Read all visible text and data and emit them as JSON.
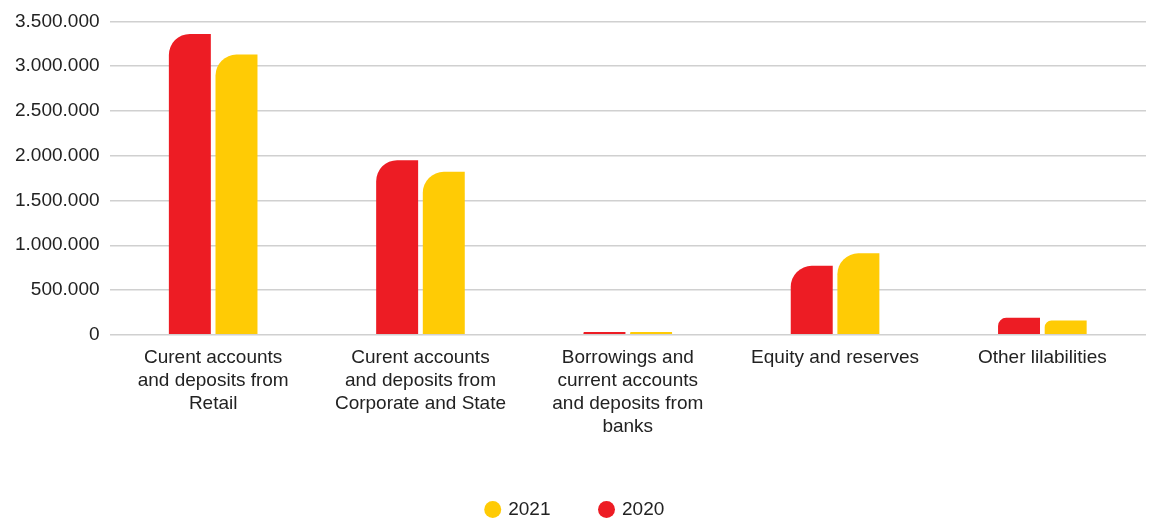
{
  "chart_data": {
    "type": "bar",
    "categories": [
      "Curent accounts and deposits from Retail",
      "Curent accounts and deposits from Corporate and State",
      "Borrowings and current accounts and deposits from banks",
      "Equity and reserves",
      "Other lilabilities"
    ],
    "series": [
      {
        "name": "2020",
        "color": "#ed1c24",
        "values": [
          3360000,
          1950000,
          30000,
          770000,
          190000
        ]
      },
      {
        "name": "2021",
        "color": "#ffcb05",
        "values": [
          3130000,
          1820000,
          30000,
          910000,
          160000
        ]
      }
    ],
    "ylim": [
      0,
      3500000
    ],
    "yticks": [
      {
        "value": 0,
        "label": "0"
      },
      {
        "value": 500000,
        "label": "500.000"
      },
      {
        "value": 1000000,
        "label": "1.000.000"
      },
      {
        "value": 1500000,
        "label": "1.500.000"
      },
      {
        "value": 2000000,
        "label": "2.000.000"
      },
      {
        "value": 2500000,
        "label": "2.500.000"
      },
      {
        "value": 3000000,
        "label": "3.000.000"
      },
      {
        "value": 3500000,
        "label": "3.500.000"
      }
    ],
    "grid": "y",
    "legend": "bottom"
  }
}
